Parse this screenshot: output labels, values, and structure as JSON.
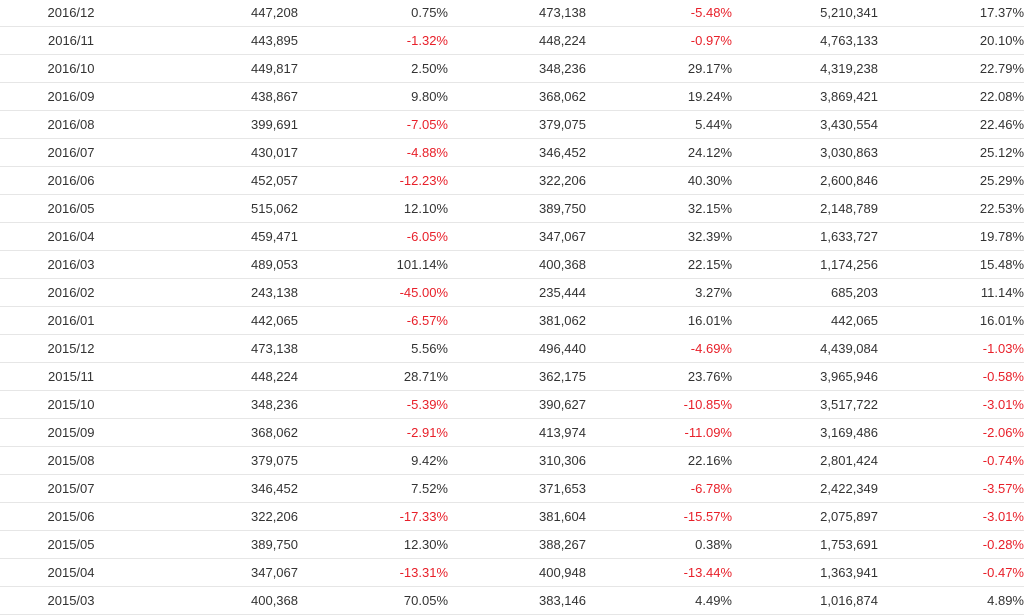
{
  "colors": {
    "negative": "#e8202a",
    "text": "#333333",
    "row_border": "#e6e6e6"
  },
  "rows": [
    {
      "month": "2016/12",
      "v1": "447,208",
      "p1": "0.75%",
      "v2": "473,138",
      "p2": "-5.48%",
      "v3": "5,210,341",
      "p3": "17.37%"
    },
    {
      "month": "2016/11",
      "v1": "443,895",
      "p1": "-1.32%",
      "v2": "448,224",
      "p2": "-0.97%",
      "v3": "4,763,133",
      "p3": "20.10%"
    },
    {
      "month": "2016/10",
      "v1": "449,817",
      "p1": "2.50%",
      "v2": "348,236",
      "p2": "29.17%",
      "v3": "4,319,238",
      "p3": "22.79%"
    },
    {
      "month": "2016/09",
      "v1": "438,867",
      "p1": "9.80%",
      "v2": "368,062",
      "p2": "19.24%",
      "v3": "3,869,421",
      "p3": "22.08%"
    },
    {
      "month": "2016/08",
      "v1": "399,691",
      "p1": "-7.05%",
      "v2": "379,075",
      "p2": "5.44%",
      "v3": "3,430,554",
      "p3": "22.46%"
    },
    {
      "month": "2016/07",
      "v1": "430,017",
      "p1": "-4.88%",
      "v2": "346,452",
      "p2": "24.12%",
      "v3": "3,030,863",
      "p3": "25.12%"
    },
    {
      "month": "2016/06",
      "v1": "452,057",
      "p1": "-12.23%",
      "v2": "322,206",
      "p2": "40.30%",
      "v3": "2,600,846",
      "p3": "25.29%"
    },
    {
      "month": "2016/05",
      "v1": "515,062",
      "p1": "12.10%",
      "v2": "389,750",
      "p2": "32.15%",
      "v3": "2,148,789",
      "p3": "22.53%"
    },
    {
      "month": "2016/04",
      "v1": "459,471",
      "p1": "-6.05%",
      "v2": "347,067",
      "p2": "32.39%",
      "v3": "1,633,727",
      "p3": "19.78%"
    },
    {
      "month": "2016/03",
      "v1": "489,053",
      "p1": "101.14%",
      "v2": "400,368",
      "p2": "22.15%",
      "v3": "1,174,256",
      "p3": "15.48%"
    },
    {
      "month": "2016/02",
      "v1": "243,138",
      "p1": "-45.00%",
      "v2": "235,444",
      "p2": "3.27%",
      "v3": "685,203",
      "p3": "11.14%"
    },
    {
      "month": "2016/01",
      "v1": "442,065",
      "p1": "-6.57%",
      "v2": "381,062",
      "p2": "16.01%",
      "v3": "442,065",
      "p3": "16.01%"
    },
    {
      "month": "2015/12",
      "v1": "473,138",
      "p1": "5.56%",
      "v2": "496,440",
      "p2": "-4.69%",
      "v3": "4,439,084",
      "p3": "-1.03%"
    },
    {
      "month": "2015/11",
      "v1": "448,224",
      "p1": "28.71%",
      "v2": "362,175",
      "p2": "23.76%",
      "v3": "3,965,946",
      "p3": "-0.58%"
    },
    {
      "month": "2015/10",
      "v1": "348,236",
      "p1": "-5.39%",
      "v2": "390,627",
      "p2": "-10.85%",
      "v3": "3,517,722",
      "p3": "-3.01%"
    },
    {
      "month": "2015/09",
      "v1": "368,062",
      "p1": "-2.91%",
      "v2": "413,974",
      "p2": "-11.09%",
      "v3": "3,169,486",
      "p3": "-2.06%"
    },
    {
      "month": "2015/08",
      "v1": "379,075",
      "p1": "9.42%",
      "v2": "310,306",
      "p2": "22.16%",
      "v3": "2,801,424",
      "p3": "-0.74%"
    },
    {
      "month": "2015/07",
      "v1": "346,452",
      "p1": "7.52%",
      "v2": "371,653",
      "p2": "-6.78%",
      "v3": "2,422,349",
      "p3": "-3.57%"
    },
    {
      "month": "2015/06",
      "v1": "322,206",
      "p1": "-17.33%",
      "v2": "381,604",
      "p2": "-15.57%",
      "v3": "2,075,897",
      "p3": "-3.01%"
    },
    {
      "month": "2015/05",
      "v1": "389,750",
      "p1": "12.30%",
      "v2": "388,267",
      "p2": "0.38%",
      "v3": "1,753,691",
      "p3": "-0.28%"
    },
    {
      "month": "2015/04",
      "v1": "347,067",
      "p1": "-13.31%",
      "v2": "400,948",
      "p2": "-13.44%",
      "v3": "1,363,941",
      "p3": "-0.47%"
    },
    {
      "month": "2015/03",
      "v1": "400,368",
      "p1": "70.05%",
      "v2": "383,146",
      "p2": "4.49%",
      "v3": "1,016,874",
      "p3": "4.89%"
    }
  ]
}
